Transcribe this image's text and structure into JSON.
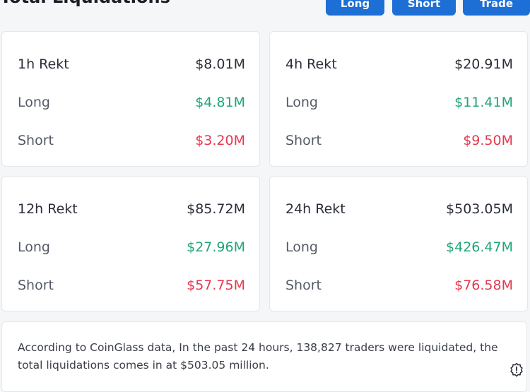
{
  "header": {
    "title": "Total Liquidations",
    "buttons": [
      "Long",
      "Short",
      "Trade"
    ]
  },
  "cards": [
    {
      "period": "1h Rekt",
      "total": "$8.01M",
      "long_label": "Long",
      "long": "$4.81M",
      "short_label": "Short",
      "short": "$3.20M"
    },
    {
      "period": "4h Rekt",
      "total": "$20.91M",
      "long_label": "Long",
      "long": "$11.41M",
      "short_label": "Short",
      "short": "$9.50M"
    },
    {
      "period": "12h Rekt",
      "total": "$85.72M",
      "long_label": "Long",
      "long": "$27.96M",
      "short_label": "Short",
      "short": "$57.75M"
    },
    {
      "period": "24h Rekt",
      "total": "$503.05M",
      "long_label": "Long",
      "long": "$426.47M",
      "short_label": "Short",
      "short": "$76.58M"
    }
  ],
  "info": {
    "text": "According to CoinGlass data, In the past 24 hours, 138,827 traders were liquidated, the total liquidations comes in at $503.05 million."
  },
  "colors": {
    "accent": "#1d6fd6",
    "long": "#20a576",
    "short": "#e5384f"
  },
  "icons": {
    "settings": "settings-icon"
  }
}
